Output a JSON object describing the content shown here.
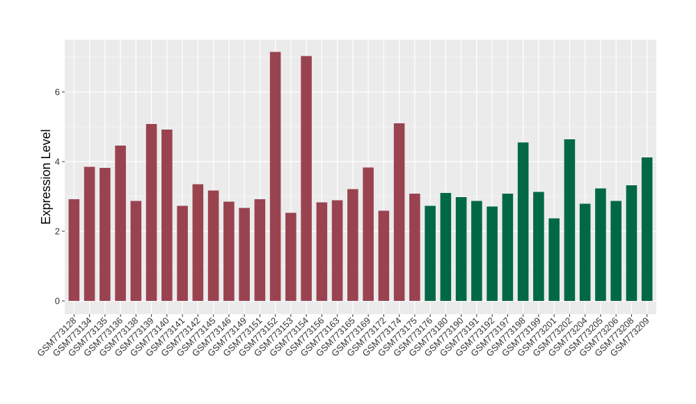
{
  "chart_data": {
    "type": "bar",
    "title": "",
    "xlabel": "",
    "ylabel": "Expression Level",
    "ylim": [
      -0.38,
      7.5
    ],
    "yticks": [
      0,
      2,
      4,
      6
    ],
    "grid": true,
    "categories": [
      "GSM773128",
      "GSM773134",
      "GSM773135",
      "GSM773136",
      "GSM773138",
      "GSM773139",
      "GSM773140",
      "GSM773141",
      "GSM773142",
      "GSM773145",
      "GSM773146",
      "GSM773149",
      "GSM773151",
      "GSM773152",
      "GSM773153",
      "GSM773154",
      "GSM773156",
      "GSM773163",
      "GSM773165",
      "GSM773169",
      "GSM773172",
      "GSM773174",
      "GSM773175",
      "GSM773176",
      "GSM773180",
      "GSM773190",
      "GSM773191",
      "GSM773192",
      "GSM773197",
      "GSM773198",
      "GSM773199",
      "GSM773201",
      "GSM773202",
      "GSM773204",
      "GSM773205",
      "GSM773206",
      "GSM773208",
      "GSM773209"
    ],
    "values": [
      2.92,
      3.85,
      3.82,
      4.46,
      2.87,
      5.08,
      4.92,
      2.73,
      3.35,
      3.17,
      2.85,
      2.67,
      2.92,
      7.15,
      2.53,
      7.03,
      2.83,
      2.89,
      3.21,
      3.83,
      2.59,
      5.1,
      3.08,
      2.73,
      3.1,
      2.98,
      2.87,
      2.71,
      3.08,
      4.55,
      3.13,
      2.37,
      4.64,
      2.79,
      3.23,
      2.87,
      3.32,
      4.12
    ],
    "groups": [
      0,
      0,
      0,
      0,
      0,
      0,
      0,
      0,
      0,
      0,
      0,
      0,
      0,
      0,
      0,
      0,
      0,
      0,
      0,
      0,
      0,
      0,
      0,
      1,
      1,
      1,
      1,
      1,
      1,
      1,
      1,
      1,
      1,
      1,
      1,
      1,
      1,
      1
    ],
    "colors": {
      "group0": "#9a4350",
      "group1": "#006846",
      "panel": "#ebebeb",
      "grid": "#ffffff"
    }
  }
}
